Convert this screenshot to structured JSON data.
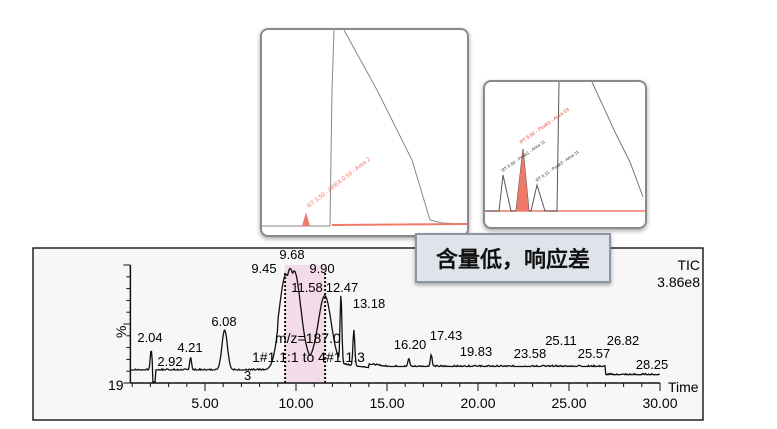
{
  "chart_data": {
    "type": "line",
    "xlabel": "Time",
    "ylabel": "%",
    "y_min_label": "19",
    "trace_label": "TIC",
    "scale_label": "3.86e8",
    "xlim": [
      0.9,
      30.0
    ],
    "ylim": [
      0,
      100
    ],
    "x_ticks": [
      "5.00",
      "10.00",
      "15.00",
      "20.00",
      "25.00",
      "30.00"
    ],
    "x_tick_values": [
      5,
      10,
      15,
      20,
      25,
      30
    ],
    "baseline": 11,
    "peaks": [
      {
        "rt": 2.04,
        "label": "2.04",
        "height": 28
      },
      {
        "rt": 2.92,
        "label": "2.92",
        "height": 12
      },
      {
        "rt": 4.21,
        "label": "4.21",
        "height": 22
      },
      {
        "rt": 6.08,
        "label": "6.08",
        "height": 45
      },
      {
        "rt": 9.45,
        "label": "9.45",
        "height": 92
      },
      {
        "rt": 9.68,
        "label": "9.68",
        "height": 97
      },
      {
        "rt": 9.9,
        "label": "9.90",
        "height": 95
      },
      {
        "rt": 11.58,
        "label": "11.58",
        "height": 74
      },
      {
        "rt": 12.47,
        "label": "12.47",
        "height": 75
      },
      {
        "rt": 13.18,
        "label": "13.18",
        "height": 45
      },
      {
        "rt": 16.2,
        "label": "16.20",
        "height": 21
      },
      {
        "rt": 17.43,
        "label": "17.43",
        "height": 24
      },
      {
        "rt": 19.83,
        "label": "19.83",
        "height": 15
      },
      {
        "rt": 23.58,
        "label": "23.58",
        "height": 15
      },
      {
        "rt": 25.11,
        "label": "25.11",
        "height": 14
      },
      {
        "rt": 25.57,
        "label": "25.57",
        "height": 15
      },
      {
        "rt": 26.82,
        "label": "26.82",
        "height": 14
      },
      {
        "rt": 28.25,
        "label": "28.25",
        "height": 7
      }
    ],
    "highlight_range": [
      9.4,
      11.6
    ],
    "annotations": [
      "m/z=187.0",
      "1#1.1:1 to 4#1.1:3",
      "3"
    ],
    "grid": false,
    "colors": {
      "trace": "#111111",
      "highlight": "#f3dce8",
      "inset_peak": "#f07a6a"
    }
  },
  "callout": {
    "text": "含量低，响应差"
  },
  "insets": [
    {
      "peak_label": "RT 3.50 - AREA 0.58 - Area 2"
    },
    {
      "peak_labels": [
        "RT 5.50 - Peak1 - Area 11",
        "RT 5.92 - Peak2 - Area 23",
        "RT 6.11 - Peak3 - Area 11"
      ]
    }
  ]
}
